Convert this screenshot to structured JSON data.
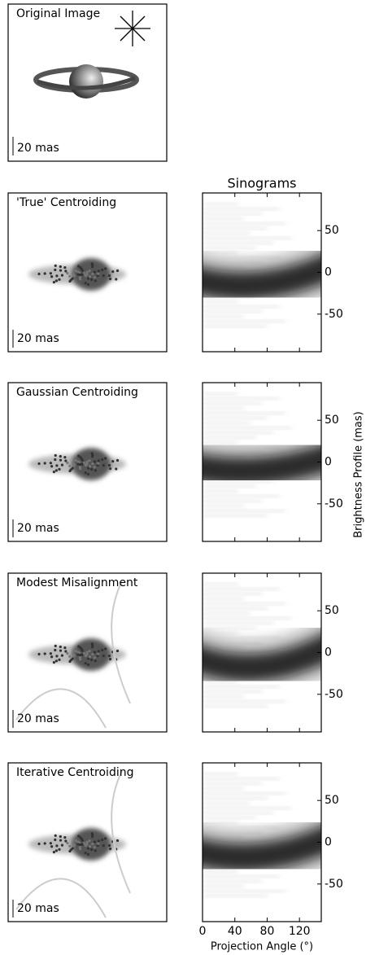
{
  "original": {
    "title": "Original Image",
    "scale_label": "20 mas"
  },
  "sinogram_title": "Sinograms",
  "panels": [
    {
      "title": "'True' Centroiding",
      "scale_label": "20 mas"
    },
    {
      "title": "Gaussian Centroiding",
      "scale_label": "20 mas"
    },
    {
      "title": "Modest Misalignment",
      "scale_label": "20 mas"
    },
    {
      "title": "Iterative Centroiding",
      "scale_label": "20 mas"
    }
  ],
  "sinogram_axis": {
    "ylabel": "Brightness Profile (mas)",
    "xlabel": "Projection Angle (°)",
    "ylim": [
      -95,
      95
    ],
    "yticks": [
      50,
      0,
      -50
    ],
    "xlim": [
      0,
      147
    ],
    "xticks": [
      0,
      40,
      80,
      120
    ]
  }
}
